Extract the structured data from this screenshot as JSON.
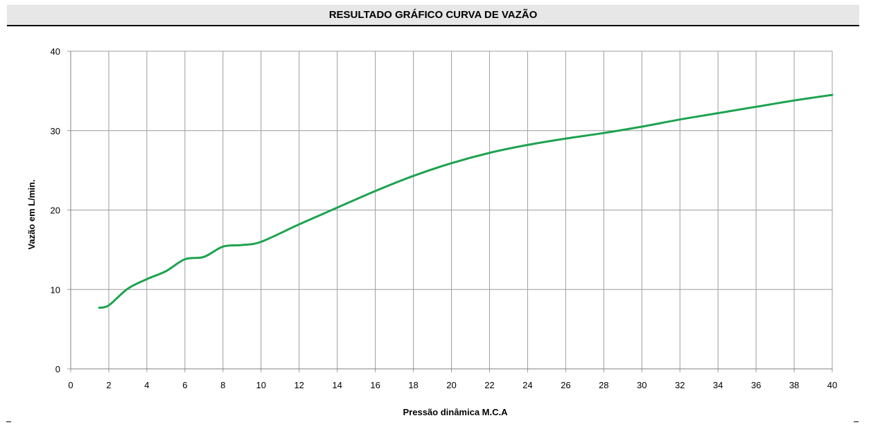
{
  "page": {
    "title": "RESULTADO GRÁFICO CURVA DE VAZÃO"
  },
  "colors": {
    "series": "#1da24f",
    "grid": "#9c9c9c",
    "title_bg": "#e7e7e7"
  },
  "chart_data": {
    "type": "line",
    "title": "RESULTADO GRÁFICO CURVA DE VAZÃO",
    "xlabel": "Pressão dinâmica M.C.A",
    "ylabel": "Vazão em L/min.",
    "xlim": [
      0,
      40
    ],
    "ylim": [
      0,
      40
    ],
    "xticks": [
      0,
      2,
      4,
      6,
      8,
      10,
      12,
      14,
      16,
      18,
      20,
      22,
      24,
      26,
      28,
      30,
      32,
      34,
      36,
      38,
      40
    ],
    "yticks": [
      0,
      10,
      20,
      30,
      40
    ],
    "grid": true,
    "legend": "none",
    "series": [
      {
        "x": [
          1.5,
          2,
          3,
          4,
          5,
          6,
          7,
          8,
          9,
          10,
          12,
          14,
          16,
          18,
          20,
          22,
          24,
          26,
          28,
          30,
          32,
          34,
          36,
          38,
          40
        ],
        "y": [
          7.7,
          8.0,
          10.1,
          11.3,
          12.3,
          13.8,
          14.1,
          15.4,
          15.6,
          16.0,
          18.2,
          20.3,
          22.4,
          24.3,
          25.9,
          27.2,
          28.2,
          29.0,
          29.7,
          30.5,
          31.4,
          32.2,
          33.0,
          33.8,
          34.5
        ]
      }
    ]
  }
}
